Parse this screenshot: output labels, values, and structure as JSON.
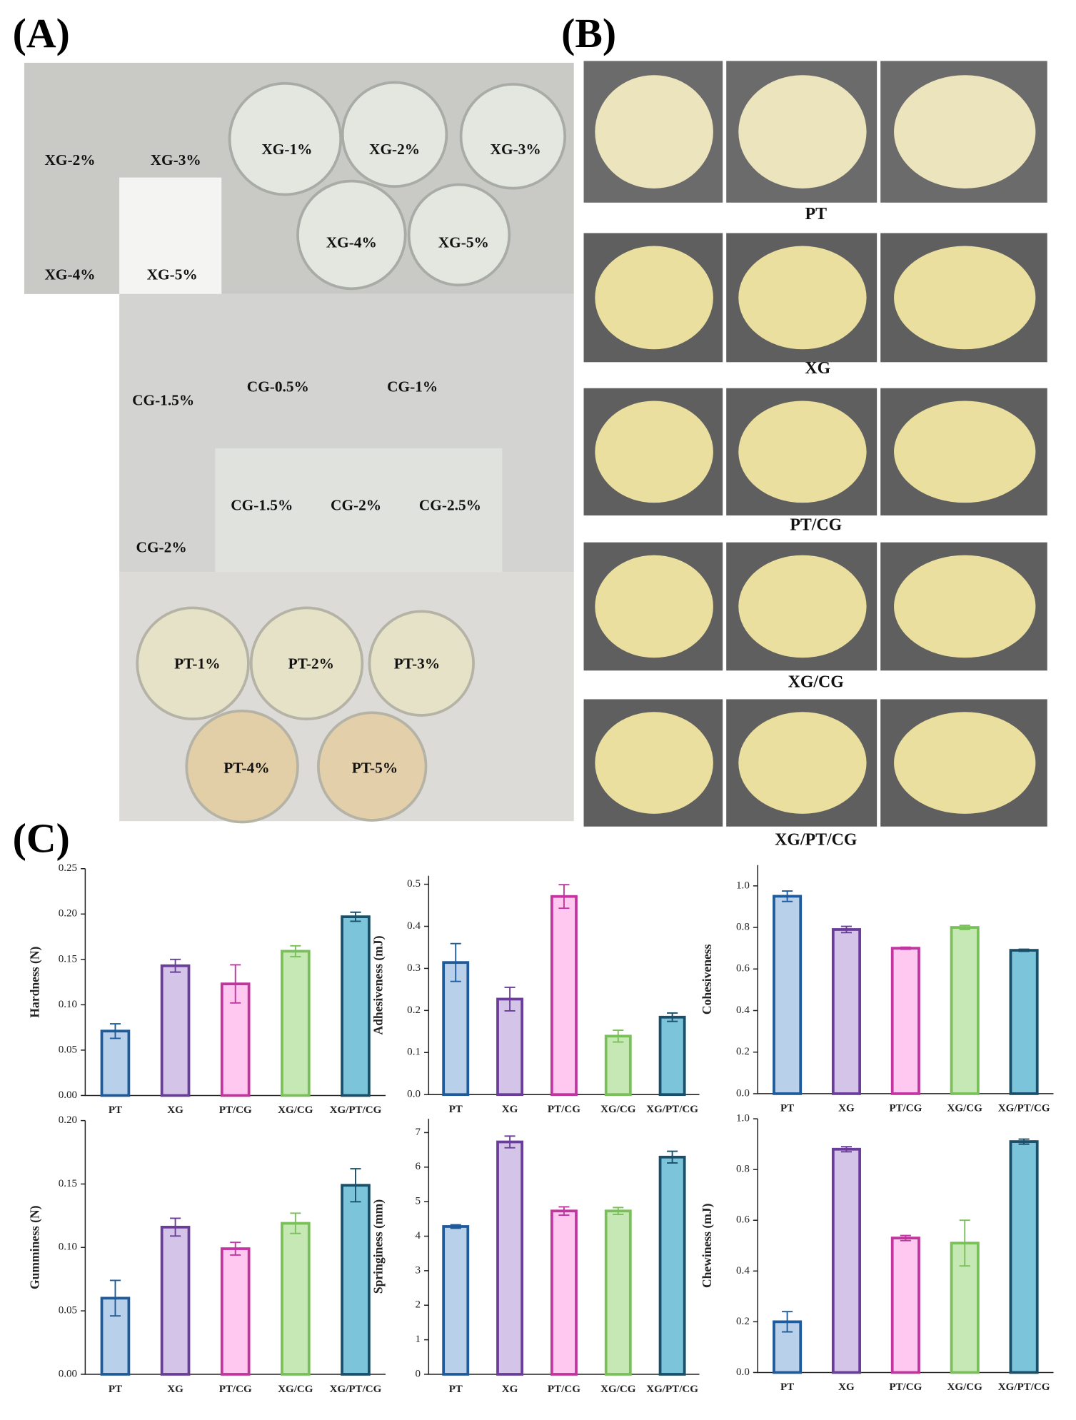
{
  "figure": {
    "panel_labels": [
      "(A)",
      "(B)",
      "(C)"
    ],
    "photo_labels_a": [
      "XG-2%",
      "XG-3%",
      "XG-4%",
      "XG-5%",
      "XG-1%",
      "XG-2%",
      "XG-3%",
      "XG-4%",
      "XG-5%",
      "CG-1.5%",
      "CG-0.5%",
      "CG-1%",
      "CG-1.5%",
      "CG-2%",
      "CG-2.5%",
      "CG-2%",
      "PT-1%",
      "PT-2%",
      "PT-3%",
      "PT-4%",
      "PT-5%"
    ],
    "photo_labels_b": [
      "PT",
      "XG",
      "PT/CG",
      "XG/CG",
      "XG/PT/CG"
    ]
  },
  "chart_data": [
    {
      "type": "bar",
      "ylabel": "Hardness (N)",
      "categories": [
        "PT",
        "XG",
        "PT/CG",
        "XG/CG",
        "XG/PT/CG"
      ],
      "values": [
        0.071,
        0.143,
        0.123,
        0.159,
        0.197
      ],
      "errors": [
        0.008,
        0.007,
        0.021,
        0.006,
        0.005
      ],
      "colors": [
        "#b8d0ea",
        "#d4c4e8",
        "#ffc8f0",
        "#c6e8b4",
        "#7cc4da"
      ],
      "edge_colors": [
        "#1f5b9a",
        "#6a3d9a",
        "#c2359f",
        "#7ac05a",
        "#1a4f6a"
      ],
      "ylim": [
        0,
        0.25
      ],
      "yticks": [
        {
          "value": 0,
          "label": "0.00"
        },
        0.05,
        {
          "value": 0.1,
          "label": "0.10"
        },
        0.15,
        {
          "value": 0.2,
          "label": "0.20"
        },
        0.25
      ]
    },
    {
      "type": "bar",
      "ylabel": "Adhesiveness (mJ)",
      "categories": [
        "PT",
        "XG",
        "PT/CG",
        "XG/CG",
        "XG/PT/CG"
      ],
      "values": [
        0.314,
        0.227,
        0.471,
        0.139,
        0.184
      ],
      "errors": [
        0.045,
        0.028,
        0.028,
        0.014,
        0.01
      ],
      "colors": [
        "#b8d0ea",
        "#d4c4e8",
        "#ffc8f0",
        "#c6e8b4",
        "#7cc4da"
      ],
      "edge_colors": [
        "#1f5b9a",
        "#6a3d9a",
        "#c2359f",
        "#7ac05a",
        "#1a4f6a"
      ],
      "ylim": [
        0,
        0.52
      ],
      "yticks": [
        {
          "value": 0,
          "label": "0.0"
        },
        0.1,
        0.2,
        0.3,
        0.4,
        0.5
      ]
    },
    {
      "type": "bar",
      "ylabel": "Cohesiveness",
      "categories": [
        "PT",
        "XG",
        "PT/CG",
        "XG/CG",
        "XG/PT/CG"
      ],
      "values": [
        0.95,
        0.79,
        0.7,
        0.8,
        0.69
      ],
      "errors": [
        0.025,
        0.015,
        0.005,
        0.01,
        0.005
      ],
      "colors": [
        "#b8d0ea",
        "#d4c4e8",
        "#ffc8f0",
        "#c6e8b4",
        "#7cc4da"
      ],
      "edge_colors": [
        "#1f5b9a",
        "#6a3d9a",
        "#c2359f",
        "#7ac05a",
        "#1a4f6a"
      ],
      "ylim": [
        0,
        1.1
      ],
      "yticks": [
        {
          "value": 0,
          "label": "0.0"
        },
        0.2,
        0.4,
        0.6,
        0.8,
        {
          "value": 1,
          "label": "1.0"
        }
      ]
    },
    {
      "type": "bar",
      "ylabel": "Gumminess (N)",
      "categories": [
        "PT",
        "XG",
        "PT/CG",
        "XG/CG",
        "XG/PT/CG"
      ],
      "values": [
        0.06,
        0.116,
        0.099,
        0.119,
        0.149
      ],
      "errors": [
        0.014,
        0.007,
        0.005,
        0.008,
        0.013
      ],
      "colors": [
        "#b8d0ea",
        "#d4c4e8",
        "#ffc8f0",
        "#c6e8b4",
        "#7cc4da"
      ],
      "edge_colors": [
        "#1f5b9a",
        "#6a3d9a",
        "#c2359f",
        "#7ac05a",
        "#1a4f6a"
      ],
      "ylim": [
        0,
        0.2
      ],
      "yticks": [
        {
          "value": 0,
          "label": "0.00"
        },
        0.05,
        {
          "value": 0.1,
          "label": "0.10"
        },
        0.15,
        {
          "value": 0.2,
          "label": "0.20"
        }
      ]
    },
    {
      "type": "bar",
      "ylabel": "Springiness (mm)",
      "categories": [
        "PT",
        "XG",
        "PT/CG",
        "XG/CG",
        "XG/PT/CG"
      ],
      "values": [
        4.28,
        6.73,
        4.73,
        4.73,
        6.29
      ],
      "errors": [
        0.05,
        0.17,
        0.12,
        0.1,
        0.17
      ],
      "colors": [
        "#b8d0ea",
        "#d4c4e8",
        "#ffc8f0",
        "#c6e8b4",
        "#7cc4da"
      ],
      "edge_colors": [
        "#1f5b9a",
        "#6a3d9a",
        "#c2359f",
        "#7ac05a",
        "#1a4f6a"
      ],
      "ylim": [
        0,
        7.4
      ],
      "yticks": [
        0,
        1,
        2,
        3,
        4,
        5,
        6,
        7
      ]
    },
    {
      "type": "bar",
      "ylabel": "Chewiness (mJ)",
      "categories": [
        "PT",
        "XG",
        "PT/CG",
        "XG/CG",
        "XG/PT/CG"
      ],
      "values": [
        0.2,
        0.88,
        0.53,
        0.51,
        0.91
      ],
      "errors": [
        0.04,
        0.01,
        0.01,
        0.09,
        0.01
      ],
      "colors": [
        "#b8d0ea",
        "#d4c4e8",
        "#ffc8f0",
        "#c6e8b4",
        "#7cc4da"
      ],
      "edge_colors": [
        "#1f5b9a",
        "#6a3d9a",
        "#c2359f",
        "#7ac05a",
        "#1a4f6a"
      ],
      "ylim": [
        0,
        1
      ],
      "yticks": [
        {
          "value": 0,
          "label": "0.0"
        },
        0.2,
        0.4,
        0.6,
        0.8,
        {
          "value": 1,
          "label": "1.0"
        }
      ]
    }
  ]
}
